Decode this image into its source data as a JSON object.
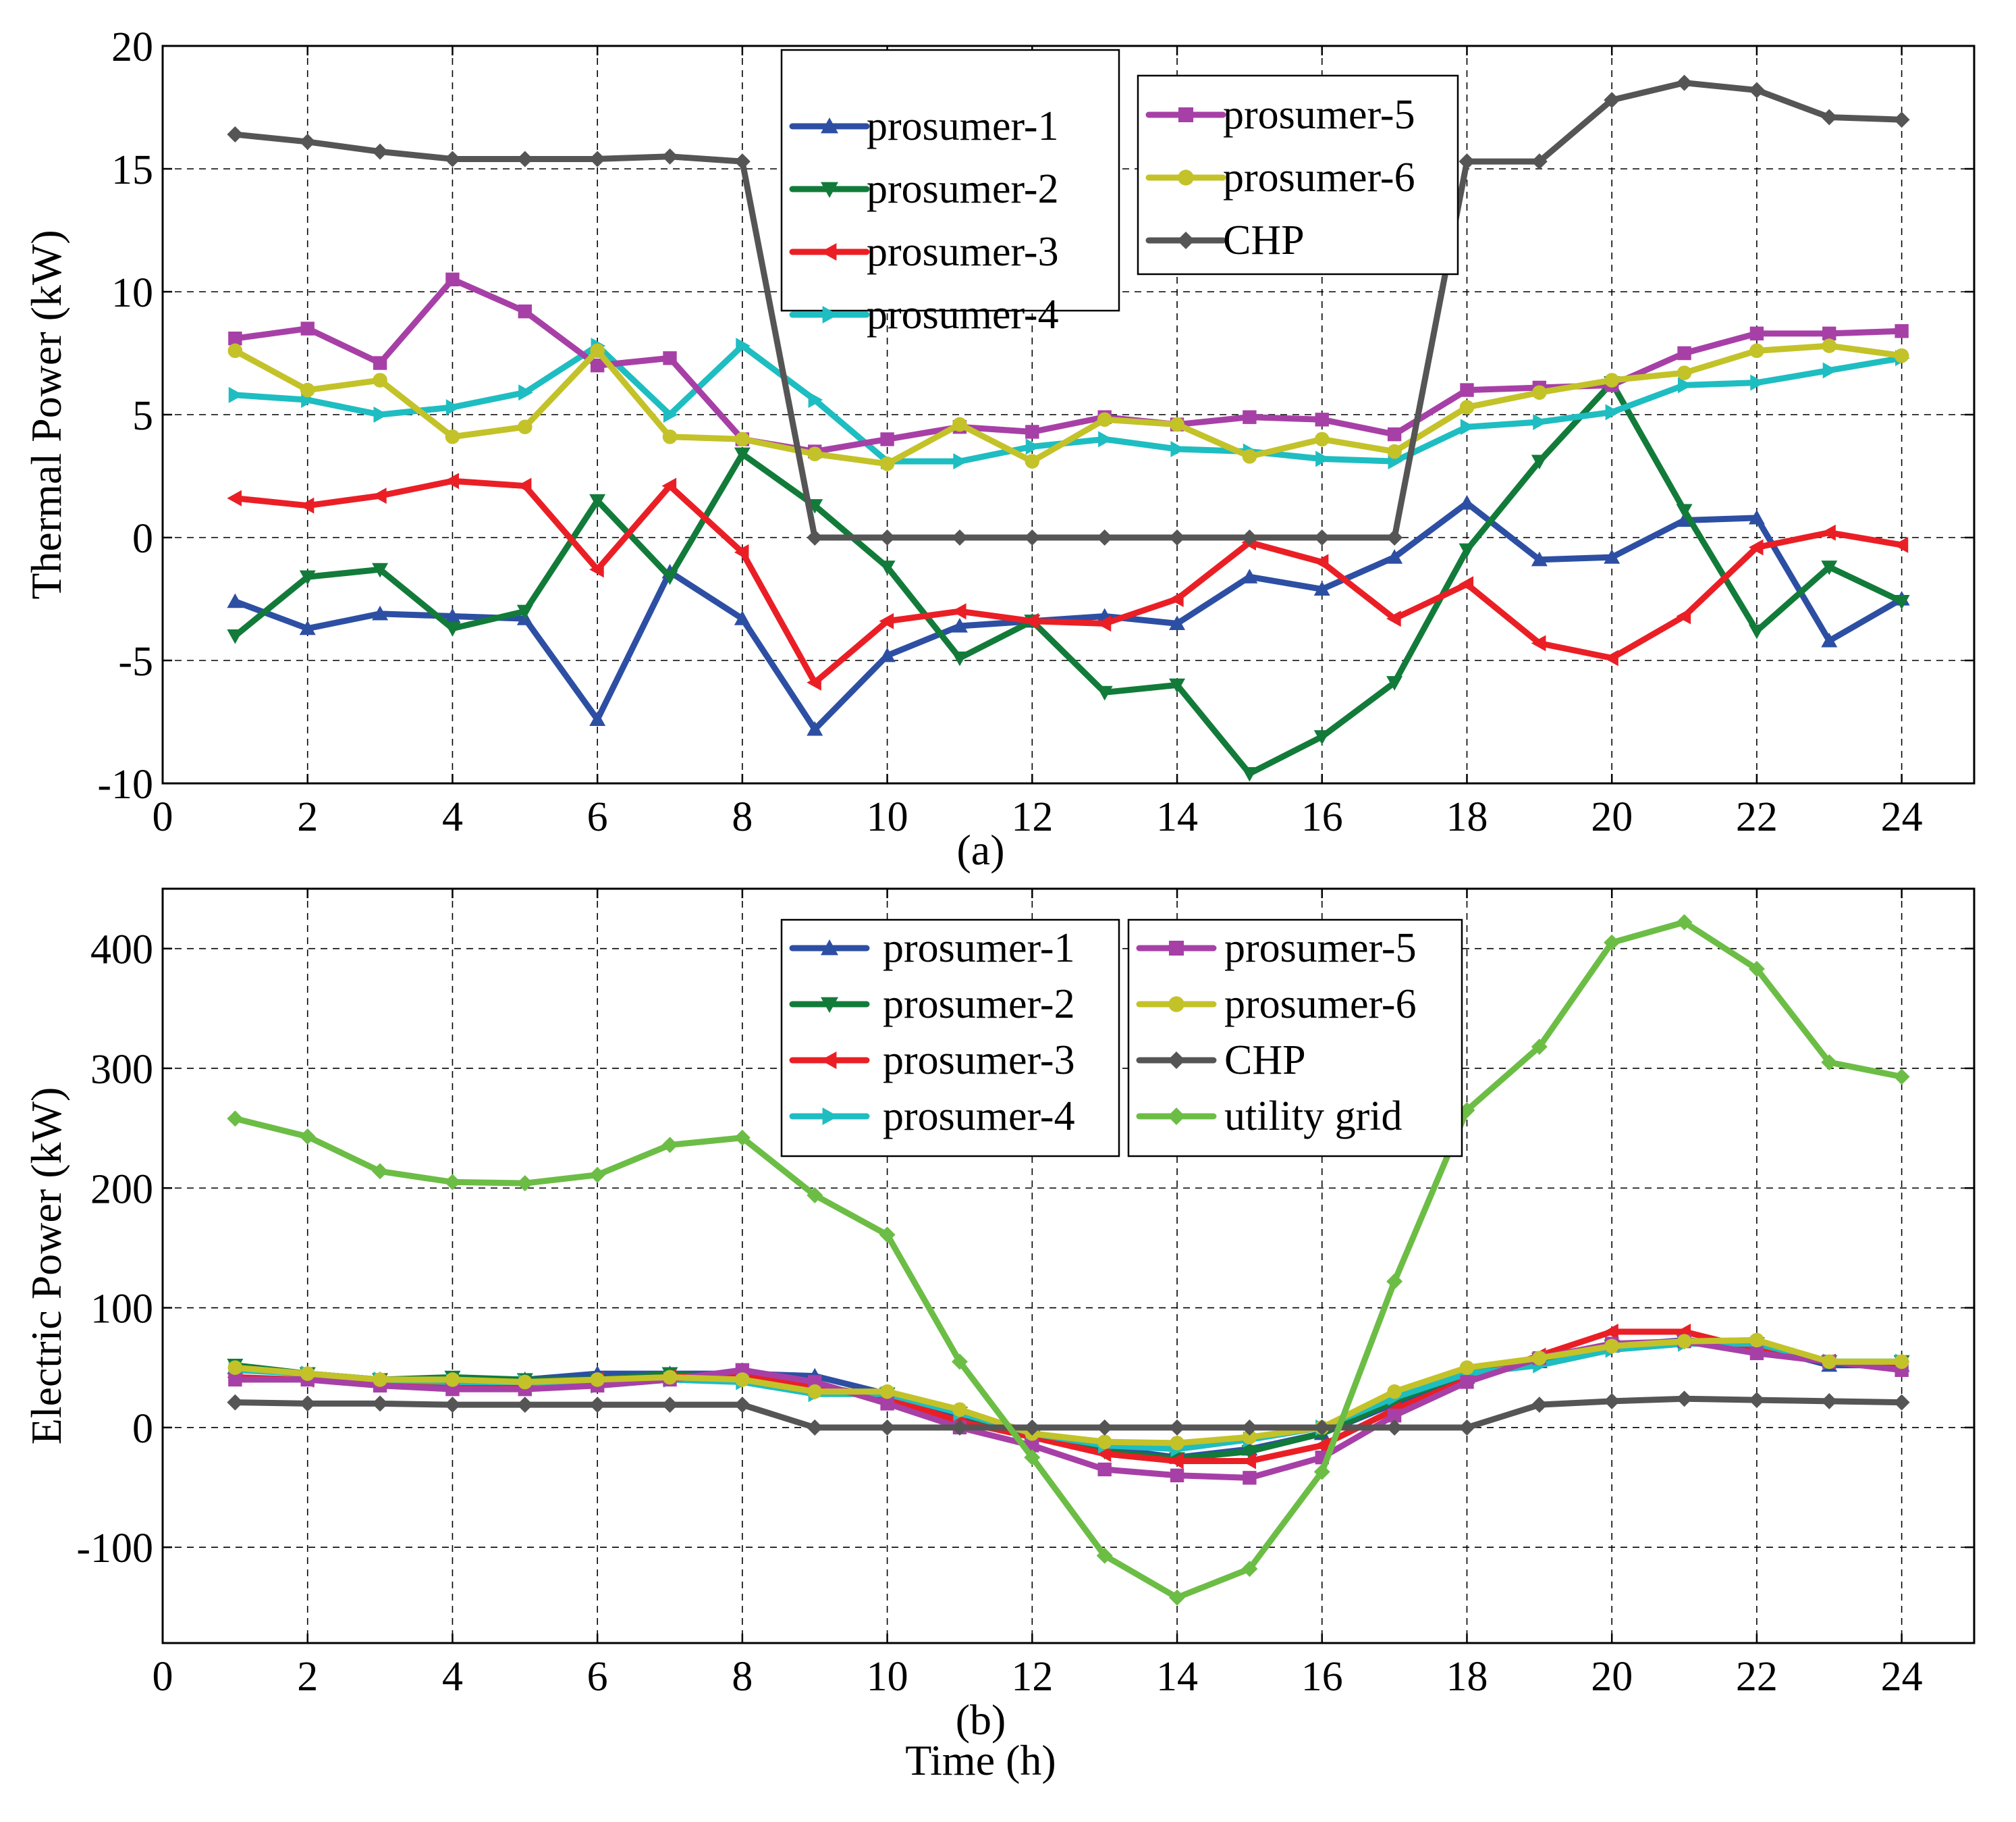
{
  "chart_data": [
    {
      "id": "panel-a",
      "type": "line",
      "title": "",
      "caption": "(a)",
      "xlabel": "",
      "ylabel": "Thermal Power (kW)",
      "xlim": [
        0,
        25
      ],
      "ylim": [
        -10,
        20
      ],
      "xticks": [
        0,
        2,
        4,
        6,
        8,
        10,
        12,
        14,
        16,
        18,
        20,
        22,
        24
      ],
      "xtick_labels": [
        "0",
        "2",
        "4",
        "6",
        "8",
        "10",
        "12",
        "14",
        "16",
        "18",
        "20",
        "22",
        "24"
      ],
      "yticks": [
        -10,
        -5,
        0,
        5,
        10,
        15,
        20
      ],
      "ytick_labels": [
        "-10",
        "-5",
        "0",
        "5",
        "10",
        "15",
        "20"
      ],
      "grid": true,
      "x": [
        1,
        2,
        3,
        4,
        5,
        6,
        7,
        8,
        9,
        10,
        11,
        12,
        13,
        14,
        15,
        16,
        17,
        18,
        19,
        20,
        21,
        22,
        23,
        24
      ],
      "legends": [
        {
          "placement": "top-center",
          "entries": [
            "prosumer-1",
            "prosumer-2",
            "prosumer-3",
            "prosumer-4"
          ]
        },
        {
          "placement": "top-center-right",
          "entries": [
            "prosumer-5",
            "prosumer-6",
            "CHP"
          ]
        }
      ],
      "series": [
        {
          "name": "prosumer-1",
          "color": "#2d4fa3",
          "marker": "triangle-up",
          "values": [
            -2.6,
            -3.7,
            -3.1,
            -3.2,
            -3.3,
            -7.4,
            -1.4,
            -3.3,
            -7.8,
            -4.8,
            -3.6,
            -3.4,
            -3.2,
            -3.5,
            -1.6,
            -2.1,
            -0.8,
            1.4,
            -0.9,
            -0.8,
            0.7,
            0.8,
            -4.2,
            -2.5
          ]
        },
        {
          "name": "prosumer-2",
          "color": "#127b3a",
          "marker": "triangle-down",
          "values": [
            -4.0,
            -1.6,
            -1.3,
            -3.7,
            -3.0,
            1.5,
            -1.6,
            3.4,
            1.3,
            -1.2,
            -4.9,
            -3.4,
            -6.3,
            -6.0,
            -9.6,
            -8.1,
            -5.9,
            -0.5,
            3.1,
            6.3,
            1.1,
            -3.8,
            -1.2,
            -2.6
          ]
        },
        {
          "name": "prosumer-3",
          "color": "#ea1f25",
          "marker": "triangle-left",
          "values": [
            1.6,
            1.3,
            1.7,
            2.3,
            2.1,
            -1.3,
            2.1,
            -0.6,
            -5.9,
            -3.4,
            -3.0,
            -3.4,
            -3.5,
            -2.5,
            -0.2,
            -1.0,
            -3.3,
            -1.9,
            -4.3,
            -4.9,
            -3.2,
            -0.4,
            0.2,
            -0.3
          ]
        },
        {
          "name": "prosumer-4",
          "color": "#1ebdc1",
          "marker": "triangle-right",
          "values": [
            5.8,
            5.6,
            5.0,
            5.3,
            5.9,
            7.8,
            5.0,
            7.8,
            5.6,
            3.1,
            3.1,
            3.7,
            4.0,
            3.6,
            3.5,
            3.2,
            3.1,
            4.5,
            4.7,
            5.1,
            6.2,
            6.3,
            6.8,
            7.3
          ]
        },
        {
          "name": "prosumer-5",
          "color": "#a740a6",
          "marker": "square",
          "values": [
            8.1,
            8.5,
            7.1,
            10.5,
            9.2,
            7.0,
            7.3,
            4.0,
            3.5,
            4.0,
            4.5,
            4.3,
            4.9,
            4.6,
            4.9,
            4.8,
            4.2,
            6.0,
            6.1,
            6.2,
            7.5,
            8.3,
            8.3,
            8.4
          ]
        },
        {
          "name": "prosumer-6",
          "color": "#c3c229",
          "marker": "circle",
          "values": [
            7.6,
            6.0,
            6.4,
            4.1,
            4.5,
            7.6,
            4.1,
            4.0,
            3.4,
            3.0,
            4.6,
            3.1,
            4.8,
            4.6,
            3.3,
            4.0,
            3.5,
            5.3,
            5.9,
            6.4,
            6.7,
            7.6,
            7.8,
            7.4
          ]
        },
        {
          "name": "CHP",
          "color": "#555555",
          "marker": "diamond",
          "values": [
            16.4,
            16.1,
            15.7,
            15.4,
            15.4,
            15.4,
            15.5,
            15.3,
            0,
            0,
            0,
            0,
            0,
            0,
            0,
            0,
            0,
            15.3,
            15.3,
            17.8,
            18.5,
            18.2,
            17.1,
            17.0
          ]
        }
      ]
    },
    {
      "id": "panel-b",
      "type": "line",
      "title": "",
      "caption": "(b)",
      "xlabel": "Time (h)",
      "ylabel": "Electric Power  (kW)",
      "xlim": [
        0,
        25
      ],
      "ylim": [
        -180,
        450
      ],
      "xticks": [
        0,
        2,
        4,
        6,
        8,
        10,
        12,
        14,
        16,
        18,
        20,
        22,
        24
      ],
      "xtick_labels": [
        "0",
        "2",
        "4",
        "6",
        "8",
        "10",
        "12",
        "14",
        "16",
        "18",
        "20",
        "22",
        "24"
      ],
      "yticks": [
        -100,
        0,
        100,
        200,
        300,
        400
      ],
      "ytick_labels": [
        "-100",
        "0",
        "100",
        "200",
        "300",
        "400"
      ],
      "grid": true,
      "x": [
        1,
        2,
        3,
        4,
        5,
        6,
        7,
        8,
        9,
        10,
        11,
        12,
        13,
        14,
        15,
        16,
        17,
        18,
        19,
        20,
        21,
        22,
        23,
        24
      ],
      "legends": [
        {
          "placement": "top-center",
          "entries": [
            "prosumer-1",
            "prosumer-2",
            "prosumer-3",
            "prosumer-4"
          ]
        },
        {
          "placement": "top-center-right",
          "entries": [
            "prosumer-5",
            "prosumer-6",
            "CHP",
            "utility grid"
          ]
        }
      ],
      "series": [
        {
          "name": "prosumer-1",
          "color": "#2d4fa3",
          "marker": "triangle-up",
          "values": [
            50,
            45,
            40,
            40,
            40,
            45,
            45,
            45,
            43,
            28,
            8,
            -5,
            -17,
            -25,
            -18,
            -5,
            20,
            42,
            55,
            68,
            73,
            68,
            52,
            52
          ]
        },
        {
          "name": "prosumer-2",
          "color": "#127b3a",
          "marker": "triangle-down",
          "values": [
            52,
            45,
            40,
            42,
            40,
            40,
            45,
            40,
            30,
            28,
            12,
            -8,
            -20,
            -26,
            -20,
            -5,
            22,
            45,
            57,
            68,
            72,
            70,
            55,
            55
          ]
        },
        {
          "name": "prosumer-3",
          "color": "#ea1f25",
          "marker": "triangle-left",
          "values": [
            42,
            40,
            38,
            35,
            35,
            40,
            42,
            45,
            35,
            25,
            5,
            -8,
            -22,
            -28,
            -28,
            -15,
            15,
            40,
            60,
            80,
            80,
            65,
            55,
            50
          ]
        },
        {
          "name": "prosumer-4",
          "color": "#1ebdc1",
          "marker": "triangle-right",
          "values": [
            48,
            45,
            40,
            38,
            38,
            35,
            40,
            38,
            28,
            28,
            12,
            -5,
            -15,
            -18,
            -10,
            0,
            25,
            45,
            52,
            65,
            70,
            70,
            55,
            55
          ]
        },
        {
          "name": "prosumer-5",
          "color": "#a740a6",
          "marker": "square",
          "values": [
            40,
            40,
            35,
            32,
            32,
            35,
            40,
            48,
            38,
            20,
            0,
            -15,
            -35,
            -40,
            -42,
            -25,
            10,
            38,
            58,
            70,
            72,
            62,
            55,
            48
          ]
        },
        {
          "name": "prosumer-6",
          "color": "#c3c229",
          "marker": "circle",
          "values": [
            50,
            45,
            40,
            40,
            38,
            40,
            42,
            40,
            30,
            30,
            15,
            -5,
            -12,
            -13,
            -8,
            0,
            30,
            50,
            58,
            68,
            72,
            73,
            55,
            55
          ]
        },
        {
          "name": "CHP",
          "color": "#555555",
          "marker": "diamond",
          "values": [
            21,
            20,
            20,
            19,
            19,
            19,
            19,
            19,
            0,
            0,
            0,
            0,
            0,
            0,
            0,
            0,
            0,
            0,
            19,
            22,
            24,
            23,
            22,
            21
          ]
        },
        {
          "name": "utility grid",
          "color": "#6cbd45",
          "marker": "diamond",
          "values": [
            258,
            243,
            214,
            205,
            204,
            211,
            236,
            242,
            194,
            161,
            55,
            -25,
            -107,
            -142,
            -118,
            -37,
            122,
            265,
            318,
            405,
            422,
            383,
            305,
            293
          ]
        }
      ]
    }
  ]
}
